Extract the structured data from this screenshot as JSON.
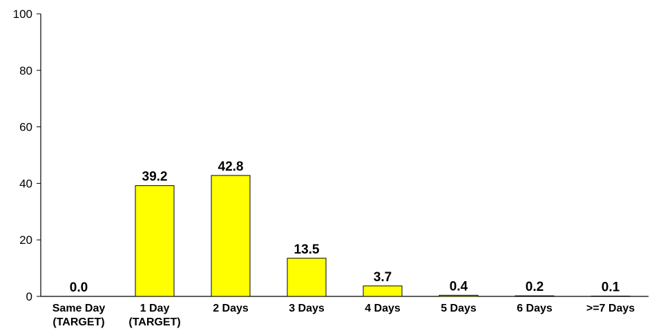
{
  "chart_data": {
    "type": "bar",
    "title": "",
    "xlabel": "",
    "ylabel": "",
    "ylim": [
      0,
      100
    ],
    "yticks": [
      0,
      20,
      40,
      60,
      80,
      100
    ],
    "grid": false,
    "bar_color": "#ffff00",
    "bar_edge_color": "#000000",
    "categories": [
      [
        "Same Day",
        "(TARGET)"
      ],
      [
        "1 Day",
        "(TARGET)"
      ],
      [
        "2 Days"
      ],
      [
        "3 Days"
      ],
      [
        "4 Days"
      ],
      [
        "5 Days"
      ],
      [
        "6 Days"
      ],
      [
        ">=7 Days"
      ]
    ],
    "values": [
      0.0,
      39.2,
      42.8,
      13.5,
      3.7,
      0.4,
      0.2,
      0.1
    ],
    "data_labels": [
      "0.0",
      "39.2",
      "42.8",
      "13.5",
      "3.7",
      "0.4",
      "0.2",
      "0.1"
    ]
  }
}
